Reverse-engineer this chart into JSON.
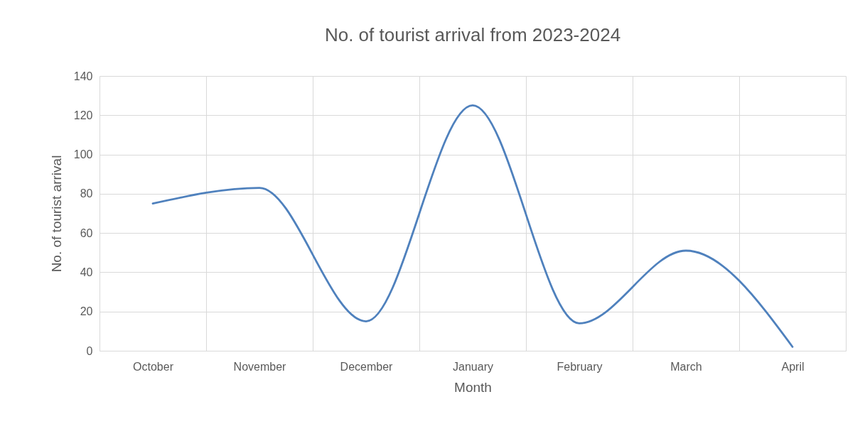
{
  "chart_data": {
    "type": "line",
    "title": "No. of tourist arrival from 2023-2024",
    "xlabel": "Month",
    "ylabel": "No. of tourist arrival",
    "categories": [
      "October",
      "November",
      "December",
      "January",
      "February",
      "March",
      "April"
    ],
    "series": [
      {
        "color": "#4f81bd",
        "values": [
          75,
          83,
          15,
          125,
          14,
          51,
          2
        ]
      }
    ],
    "ylim": [
      0,
      140
    ],
    "yticks": [
      0,
      20,
      40,
      60,
      80,
      100,
      120,
      140
    ],
    "grid": true,
    "marker": "none",
    "line_style": "solid"
  }
}
